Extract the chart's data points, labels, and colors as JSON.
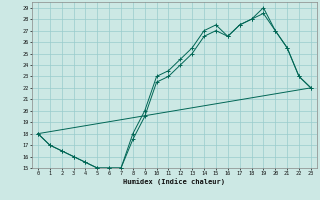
{
  "xlabel": "Humidex (Indice chaleur)",
  "bg_color": "#cce8e4",
  "grid_color": "#99cccc",
  "line_color": "#006655",
  "xlim": [
    -0.5,
    23.5
  ],
  "ylim": [
    15,
    29.5
  ],
  "xticks": [
    0,
    1,
    2,
    3,
    4,
    5,
    6,
    7,
    8,
    9,
    10,
    11,
    12,
    13,
    14,
    15,
    16,
    17,
    18,
    19,
    20,
    21,
    22,
    23
  ],
  "yticks": [
    15,
    16,
    17,
    18,
    19,
    20,
    21,
    22,
    23,
    24,
    25,
    26,
    27,
    28,
    29
  ],
  "line1_x": [
    0,
    1,
    2,
    3,
    4,
    5,
    6,
    7,
    8,
    9,
    10,
    11,
    12,
    13,
    14,
    15,
    16,
    17,
    18,
    19,
    20,
    21,
    22,
    23
  ],
  "line1_y": [
    18,
    17,
    16.5,
    16,
    15.5,
    15,
    15,
    15,
    17.5,
    19.5,
    22.5,
    23,
    24,
    25,
    26.5,
    27,
    26.5,
    27.5,
    28,
    28.5,
    27,
    25.5,
    23,
    22
  ],
  "line2_x": [
    0,
    1,
    2,
    3,
    4,
    5,
    6,
    7,
    8,
    9,
    10,
    11,
    12,
    13,
    14,
    15,
    16,
    17,
    18,
    19,
    20,
    21,
    22,
    23
  ],
  "line2_y": [
    18,
    17,
    16.5,
    16,
    15.5,
    15,
    15,
    15,
    18,
    20,
    23,
    23.5,
    24.5,
    25.5,
    27,
    27.5,
    26.5,
    27.5,
    28,
    29,
    27,
    25.5,
    23,
    22
  ],
  "line3_x": [
    0,
    23
  ],
  "line3_y": [
    18,
    22
  ]
}
